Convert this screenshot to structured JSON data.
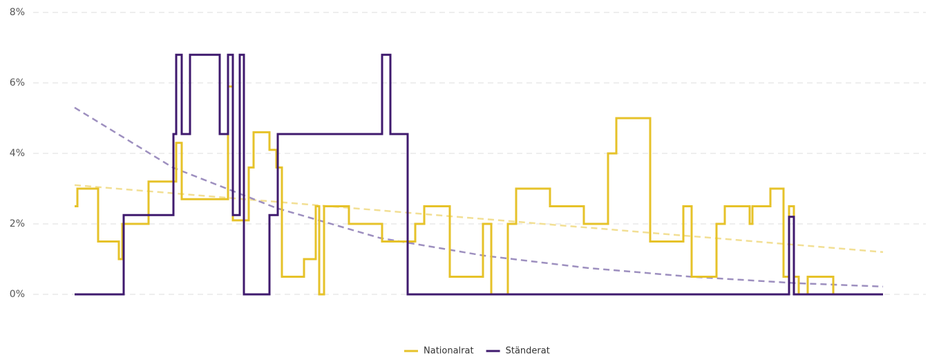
{
  "chart_data": {
    "type": "step",
    "xlim": [
      108,
      1278
    ],
    "ylim": [
      0,
      8
    ],
    "yticks": [
      {
        "value": 0,
        "label": "0%"
      },
      {
        "value": 2,
        "label": "2%"
      },
      {
        "value": 4,
        "label": "4%"
      },
      {
        "value": 6,
        "label": "6%"
      },
      {
        "value": 8,
        "label": "8%"
      }
    ],
    "grid": true,
    "legend": "bottom",
    "series": [
      {
        "name": "Nationalrat",
        "color": "#e6c229",
        "x": [
          108,
          112,
          142,
          172,
          177,
          215,
          255,
          263,
          330,
          337,
          360,
          367,
          390,
          400,
          408,
          440,
          457,
          462,
          469,
          505,
          553,
          601,
          614,
          651,
          699,
          711,
          735,
          747,
          796,
          845,
          880,
          892,
          941,
          989,
          1001,
          1037,
          1049,
          1085,
          1089,
          1115,
          1134,
          1142,
          1149,
          1156,
          1169,
          1206,
          1278
        ],
        "values": [
          2.5,
          3.0,
          1.5,
          1.0,
          2.0,
          3.2,
          4.3,
          2.7,
          5.9,
          2.1,
          3.6,
          4.6,
          4.1,
          3.6,
          0.5,
          1.0,
          2.5,
          0,
          2.5,
          2.0,
          1.5,
          2.0,
          2.5,
          0.5,
          2.0,
          0,
          2.0,
          3.0,
          2.5,
          2.0,
          4.0,
          5.0,
          1.5,
          2.5,
          0.5,
          2.0,
          2.5,
          2.0,
          2.5,
          3.0,
          0.5,
          2.5,
          0.5,
          0,
          0.5,
          0,
          0
        ],
        "trend": {
          "x": [
            108,
            1278
          ],
          "values": [
            3.1,
            1.2
          ],
          "color": "#f2df94"
        }
      },
      {
        "name": "Ständerat",
        "color": "#3f1a6e",
        "x": [
          108,
          179,
          251,
          255,
          263,
          275,
          318,
          330,
          337,
          347,
          353,
          390,
          402,
          553,
          565,
          590,
          1142,
          1149,
          1278
        ],
        "values": [
          0,
          2.25,
          4.55,
          6.8,
          4.55,
          6.8,
          4.55,
          6.8,
          2.25,
          6.8,
          0,
          2.25,
          4.55,
          6.8,
          4.55,
          0,
          2.2,
          0,
          0
        ],
        "trend": {
          "x": [
            108,
            250,
            400,
            550,
            700,
            850,
            1000,
            1150,
            1278
          ],
          "values": [
            5.3,
            3.6,
            2.45,
            1.6,
            1.1,
            0.75,
            0.5,
            0.32,
            0.22
          ],
          "color": "#9d8fbf"
        }
      }
    ]
  }
}
